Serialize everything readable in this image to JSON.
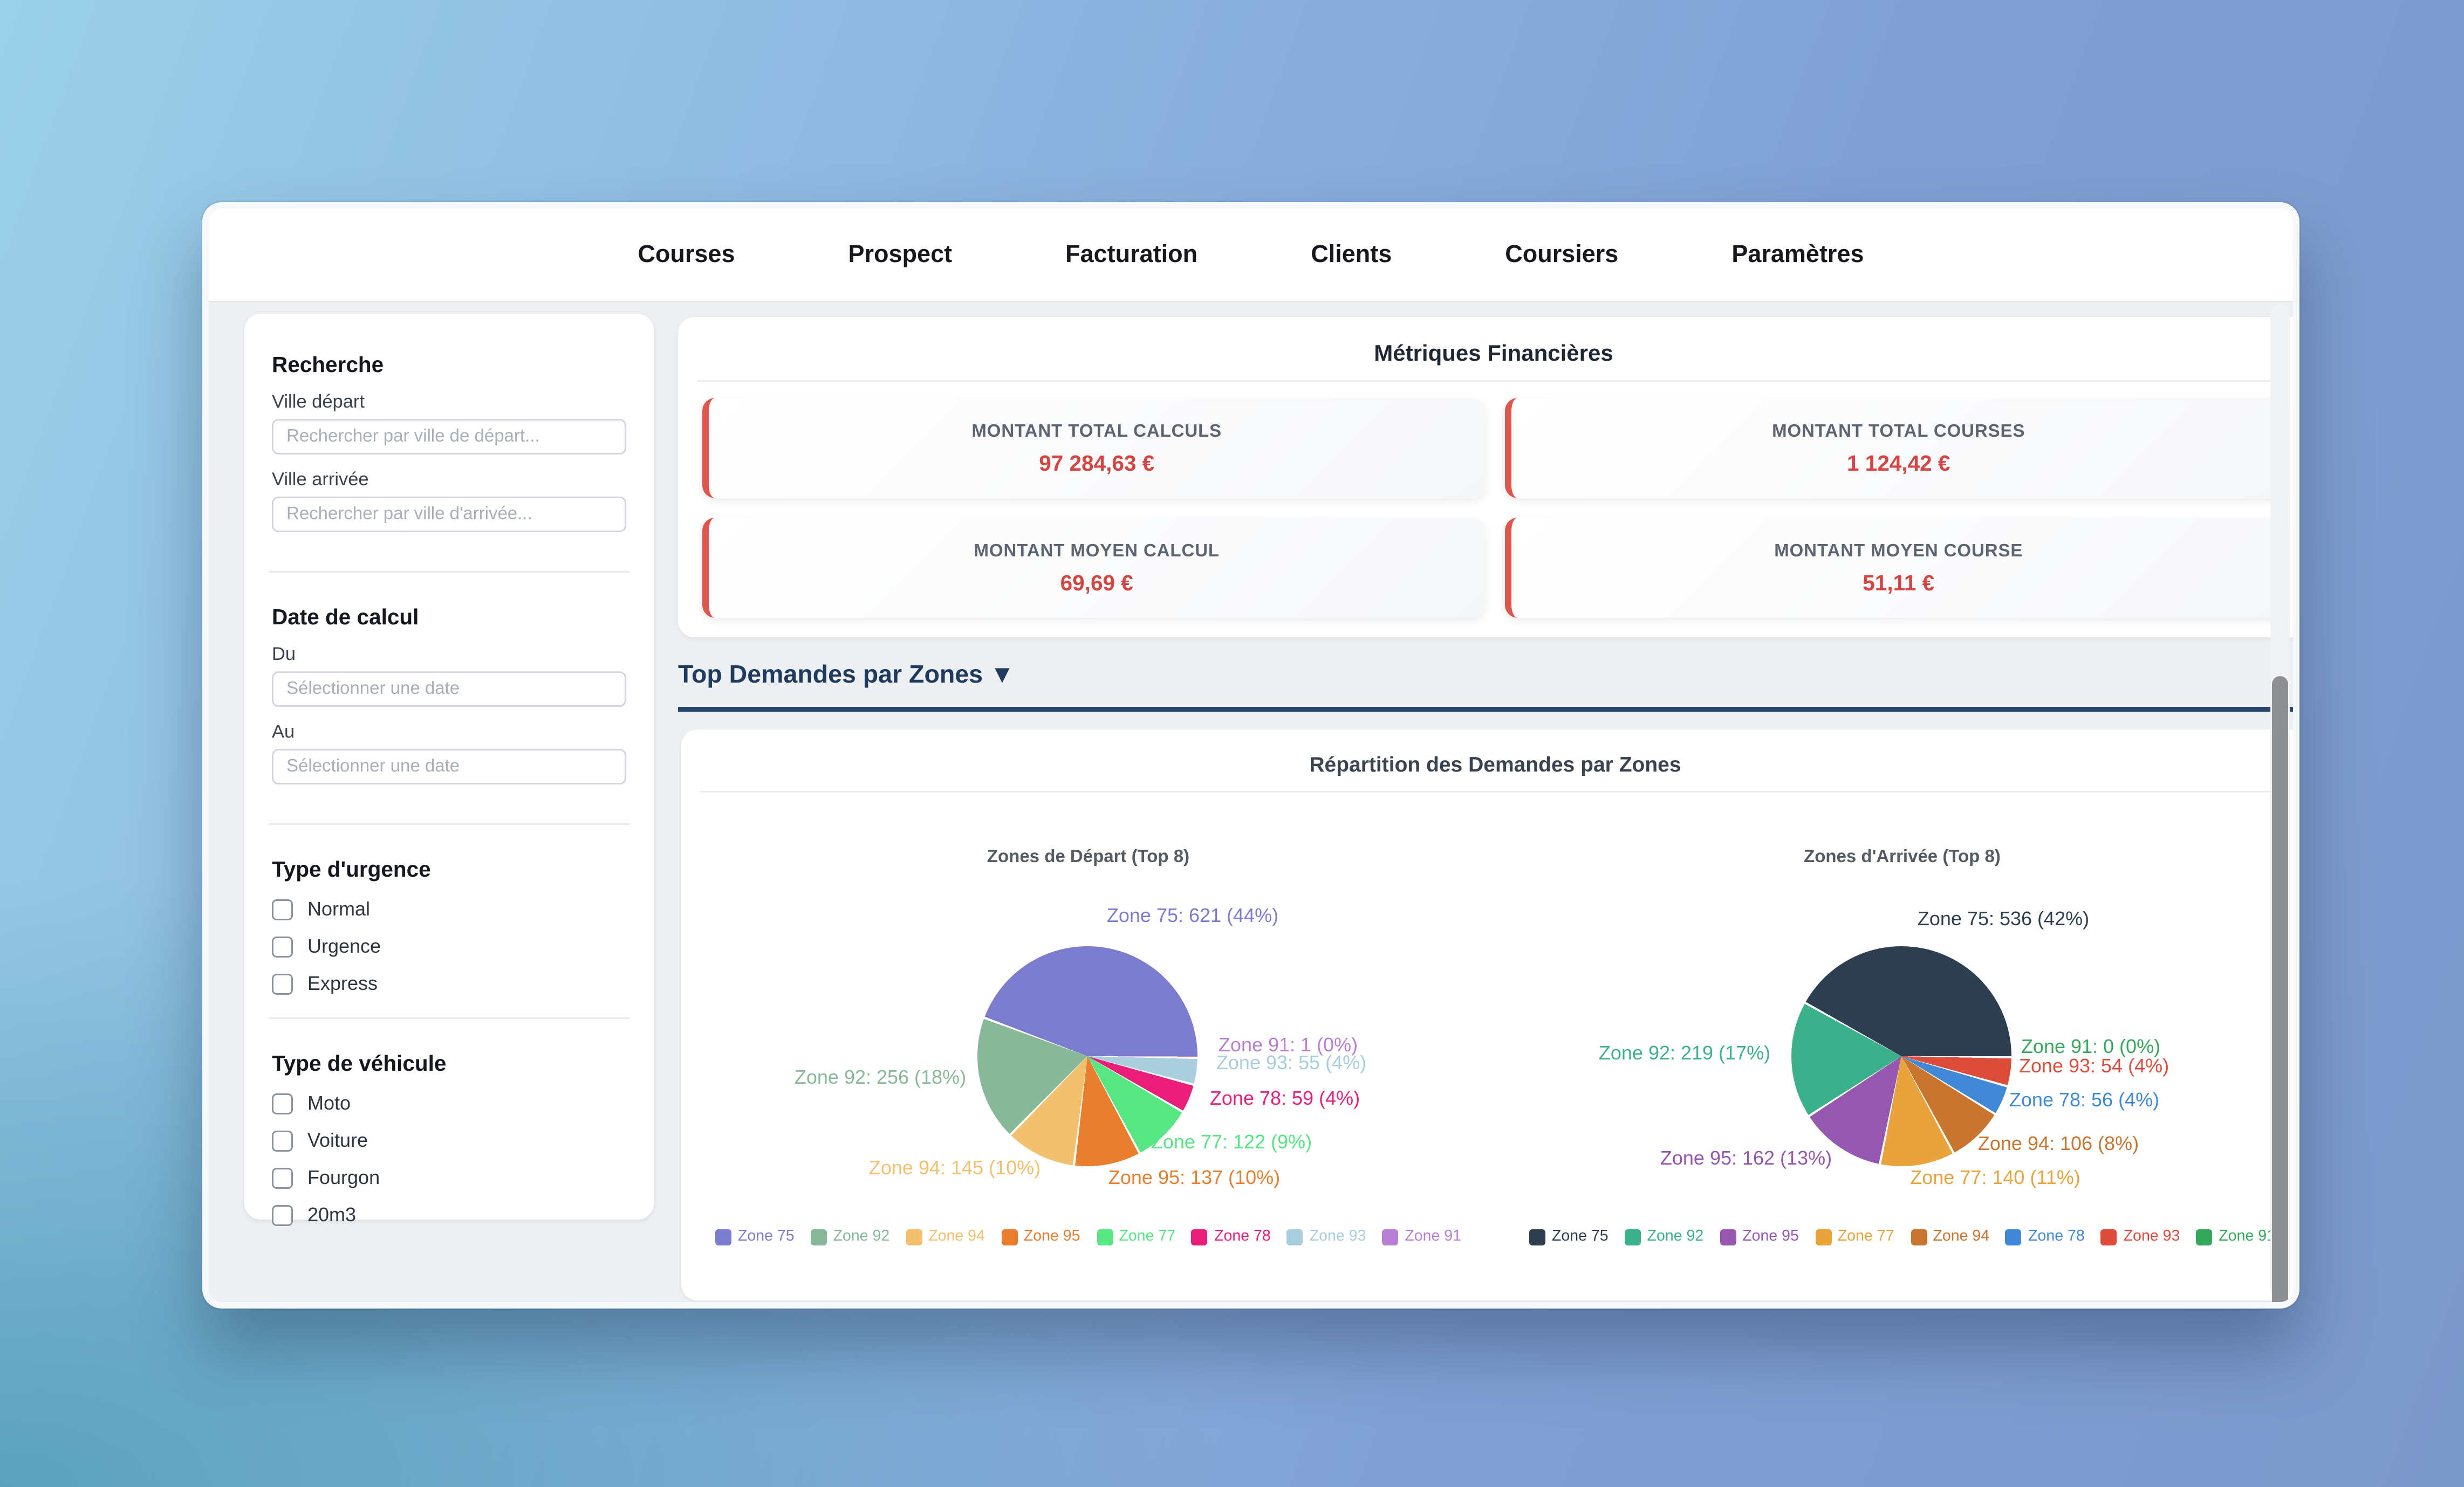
{
  "nav": {
    "items": [
      "Courses",
      "Prospect",
      "Facturation",
      "Clients",
      "Coursiers",
      "Paramètres"
    ]
  },
  "sidebar": {
    "search_title": "Recherche",
    "ville_depart_label": "Ville départ",
    "ville_depart_placeholder": "Rechercher par ville de départ...",
    "ville_arrivee_label": "Ville arrivée",
    "ville_arrivee_placeholder": "Rechercher par ville d'arrivée...",
    "date_title": "Date de calcul",
    "du_label": "Du",
    "au_label": "Au",
    "date_placeholder": "Sélectionner une date",
    "urgence_title": "Type d'urgence",
    "urgence_options": [
      "Normal",
      "Urgence",
      "Express"
    ],
    "vehicule_title": "Type de véhicule",
    "vehicule_options": [
      "Moto",
      "Voiture",
      "Fourgon",
      "20m3"
    ]
  },
  "metrics": {
    "title": "Métriques Financières",
    "accent_color": "#e0564c",
    "value_color": "#d64541",
    "cards": [
      {
        "label": "MONTANT TOTAL CALCULS",
        "value": "97 284,63 €"
      },
      {
        "label": "MONTANT TOTAL COURSES",
        "value": "1 124,42 €"
      },
      {
        "label": "MONTANT MOYEN CALCUL",
        "value": "69,69 €"
      },
      {
        "label": "MONTANT MOYEN COURSE",
        "value": "51,11 €"
      }
    ]
  },
  "zones_section": {
    "header": "Top Demandes par Zones ▼",
    "card_title": "Répartition des Demandes par Zones"
  },
  "chart_data": [
    {
      "type": "pie",
      "title": "Zones de Départ (Top 8)",
      "labels": [
        "Zone 75",
        "Zone 92",
        "Zone 94",
        "Zone 95",
        "Zone 77",
        "Zone 78",
        "Zone 93",
        "Zone 91"
      ],
      "values": [
        621,
        256,
        145,
        137,
        122,
        59,
        55,
        1
      ],
      "percents": [
        44,
        18,
        10,
        10,
        9,
        4,
        4,
        0
      ],
      "colors": [
        "#7b7ccd",
        "#87b897",
        "#f3c06f",
        "#e97e2e",
        "#57e684",
        "#ea1e79",
        "#a9cede",
        "#b87fd4"
      ],
      "legend_position": "bottom",
      "direction": "counterclockwise",
      "start_angle_deg_from_top": 90
    },
    {
      "type": "pie",
      "title": "Zones d'Arrivée (Top 8)",
      "labels": [
        "Zone 75",
        "Zone 92",
        "Zone 95",
        "Zone 77",
        "Zone 94",
        "Zone 78",
        "Zone 93",
        "Zone 91"
      ],
      "values": [
        536,
        219,
        162,
        140,
        106,
        56,
        54,
        0
      ],
      "percents": [
        42,
        17,
        13,
        11,
        8,
        4,
        4,
        0
      ],
      "colors": [
        "#2c3e50",
        "#3bb08a",
        "#9657ae",
        "#e8a33c",
        "#c8762f",
        "#4189d6",
        "#dd4b3a",
        "#35a85c"
      ],
      "legend_position": "bottom",
      "direction": "counterclockwise",
      "start_angle_deg_from_top": 90
    }
  ]
}
